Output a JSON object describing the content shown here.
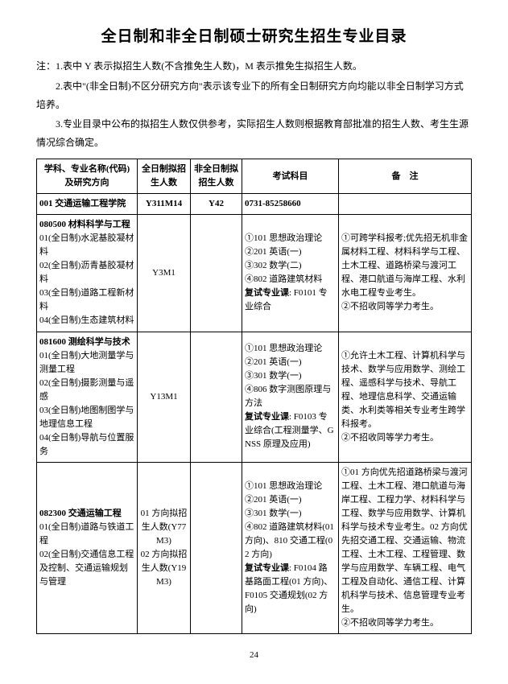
{
  "title": "全日制和非全日制硕士研究生招生专业目录",
  "notes": [
    "注：1.表中 Y 表示拟招生人数(不含推免生人数)，M 表示推免生拟招生人数。",
    "2.表中\"(非全日制)不区分研究方向\"表示该专业下的所有全日制研究方向均能以非全日制学习方式培养。",
    "3.专业目录中公布的拟招生人数仅供参考，实际招生人数则根据教育部批准的招生人数、考生生源情况综合确定。"
  ],
  "headers": {
    "col1": "学科、专业名称(代码)\n及研究方向",
    "col2": "全日制拟招生人数",
    "col3": "非全日制拟招生人数",
    "col4": "考试科目",
    "col5": "备　注"
  },
  "schoolRow": {
    "name": "001 交通运输工程学院",
    "full": "Y311M14",
    "part": "Y42",
    "phone": "0731-85258660"
  },
  "rows": [
    {
      "c1": "080500 材料科学与工程\n01(全日制)水泥基胶凝材料\n02(全日制)沥青基胶凝材料\n03(全日制)道路工程新材料\n04(全日制)生态建筑材料",
      "c1bold": "080500 材料科学与工程",
      "c2": "Y3M1",
      "c3": "",
      "c4": "①101 思想政治理论\n②201 英语(一)\n③302 数学(二)\n④802 道路建筑材料\n复试专业课: F0101 专业综合",
      "c5": "①可跨学科报考;优先招无机非金属材料工程、材料科学与工程、土木工程、道路桥梁与渡河工程、港口航道与海岸工程、水利水电工程专业考生。\n②不招收同等学力考生。"
    },
    {
      "c1": "081600 测绘科学与技术\n01(全日制)大地测量学与测量工程\n02(全日制)摄影测量与遥感\n03(全日制)地图制图学与地理信息工程\n04(全日制)导航与位置服务",
      "c1bold": "081600 测绘科学与技术",
      "c2": "Y13M1",
      "c3": "",
      "c4": "①101 思想政治理论\n②201 英语(一)\n③301 数学(一)\n④806 数字测图原理与方法\n复试专业课: F0103 专业综合(工程测量学、GNSS 原理及应用)",
      "c5": "①允许土木工程、计算机科学与技术、数学与应用数学、测绘工程、遥感科学与技术、导航工程、地理信息科学、交通运输类、水利类等相关专业考生跨学科报考。\n②不招收同等学力考生。"
    },
    {
      "c1": "082300 交通运输工程\n01(全日制)道路与铁道工程\n02(全日制)交通信息工程及控制、交通运输规划与管理",
      "c1bold": "082300 交通运输工程",
      "c2": "01 方向拟招生人数(Y77M3)\n02 方向拟招生人数(Y19M3)",
      "c3": "",
      "c4": "①101 思想政治理论\n②201 英语(一)\n③301 数学(一)\n④802 道路建筑材料(01 方向)、810 交通工程(02 方向)\n复试专业课: F0104 路基路面工程(01 方向)、F0105 交通规划(02 方向)",
      "c5": "①01 方向优先招道路桥梁与渡河工程、土木工程、港口航道与海岸工程、工程力学、材料科学与工程、数学与应用数学、计算机科学与技术专业考生。02 方向优先招交通工程、交通运输、物流工程、土木工程、工程管理、数学与应用数学、车辆工程、电气工程及自动化、通信工程、计算机科学与技术、信息管理专业考生。\n②不招收同等学力考生。"
    }
  ],
  "pageNumber": "24"
}
